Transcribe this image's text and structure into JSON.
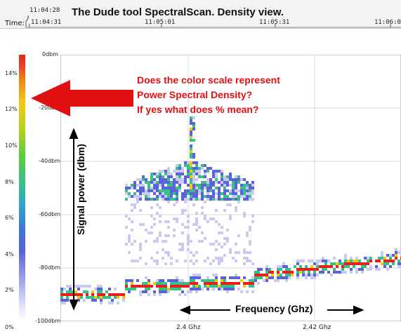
{
  "header": {
    "title": "The Dude tool SpectralScan. Density view.",
    "time_label": "Time:",
    "current_time": "11:04:28",
    "time_ticks": [
      "11:04:31",
      "11:05:01",
      "11:05:31",
      "11:06:0"
    ]
  },
  "color_scale": {
    "labels": [
      "0%",
      "2%",
      "4%",
      "6%",
      "8%",
      "10%",
      "12%",
      "14%"
    ]
  },
  "power_axis": {
    "labels": [
      "0dbm",
      "-20dbm",
      "-40dbm",
      "-60dbm",
      "-80dbm",
      "-100dbm"
    ]
  },
  "frequency_axis": {
    "labels": [
      "2.4 Ghz",
      "2.42 Ghz"
    ]
  },
  "annotations": {
    "question_lines": [
      "Does the color scale represent",
      "Power Spectral Density?",
      "If yes what does % mean?"
    ],
    "signal_power_label": "Signal power (dbm)",
    "frequency_label": "Frequency (Ghz)"
  },
  "colors": {
    "annotation_red": "#e01010",
    "hot": "#e8201a",
    "warm": "#f0c814",
    "mid": "#37c08a",
    "cool": "#5a64d6",
    "faint": "#c8caf2"
  }
}
